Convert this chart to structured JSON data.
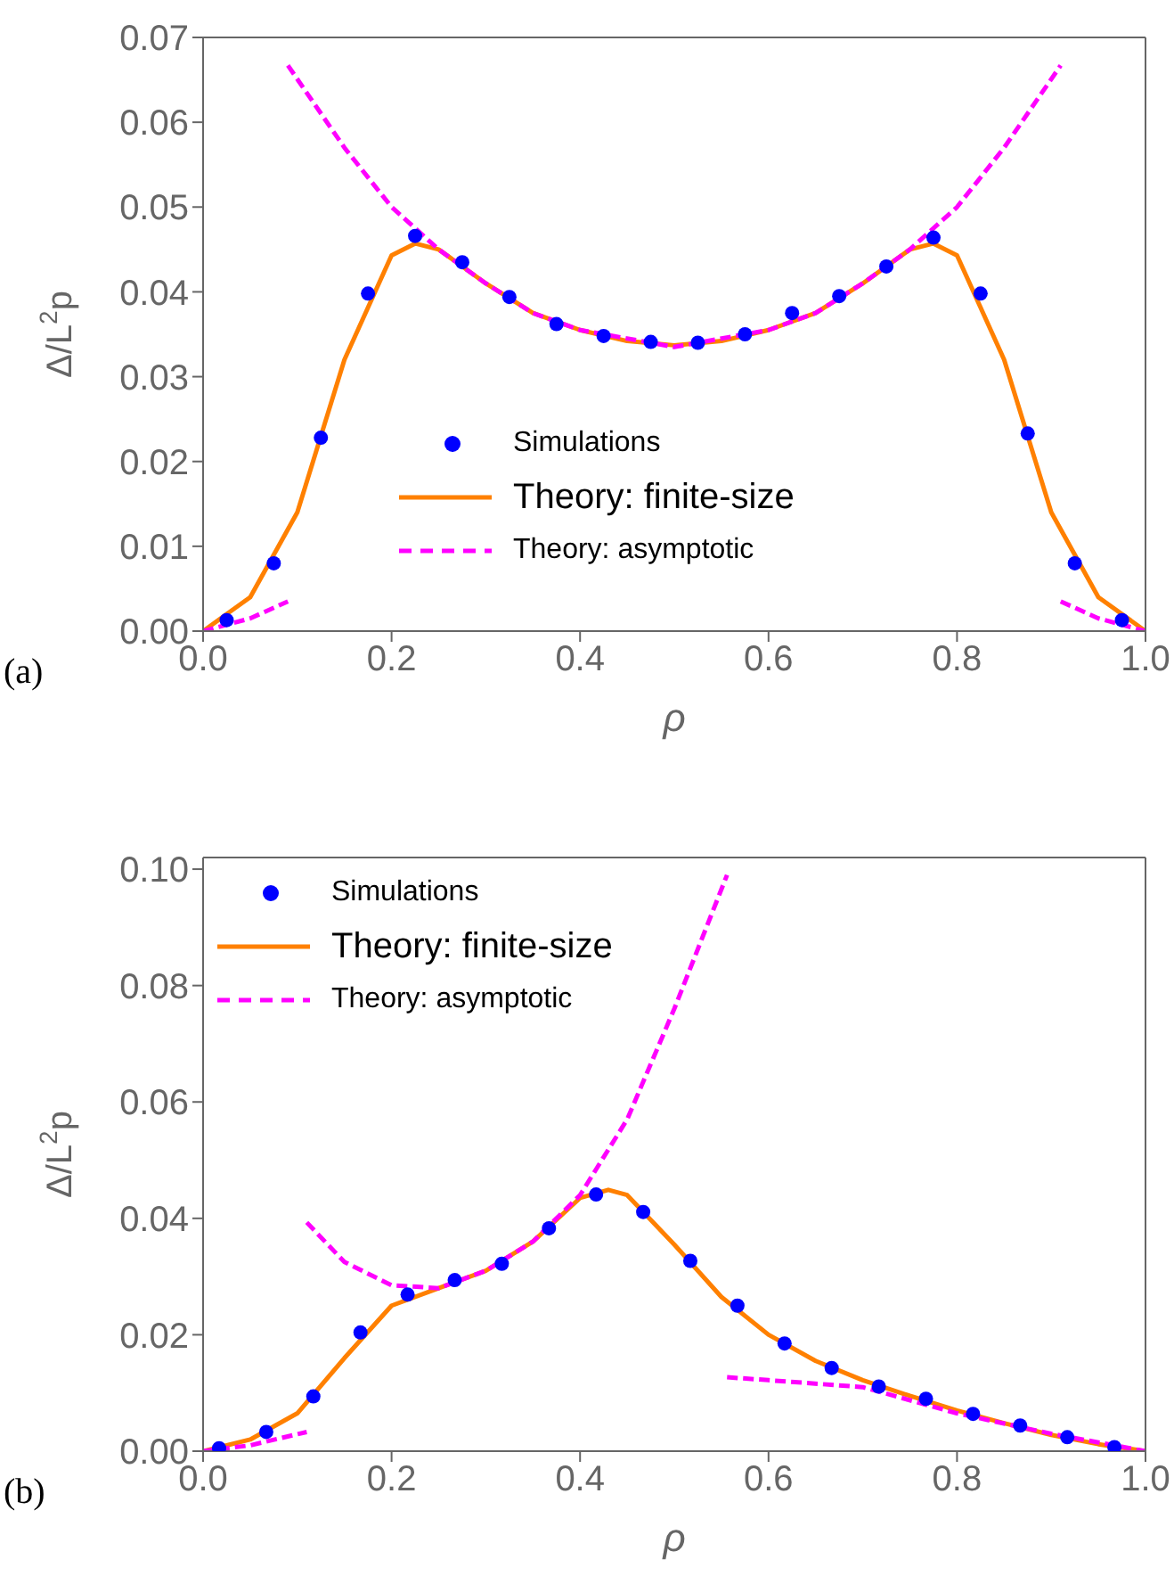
{
  "chart_data": [
    {
      "type": "line",
      "xlabel": "ρ",
      "ylabel": "Δ/L$^{2}$p",
      "annotations": [
        "(a)"
      ],
      "legend": "bottom",
      "xlim": [
        0,
        1
      ],
      "xticks": [
        {
          "value": 0,
          "label": "0.0"
        },
        {
          "value": 0.2,
          "label": "0.2"
        },
        {
          "value": 0.4,
          "label": "0.4"
        },
        {
          "value": 0.6,
          "label": "0.6"
        },
        {
          "value": 0.8,
          "label": "0.8"
        },
        {
          "value": 1,
          "label": "1.0"
        }
      ],
      "ylim": [
        0,
        0.07
      ],
      "yticks": [
        {
          "value": 0,
          "label": "0.00"
        },
        {
          "value": 0.01,
          "label": "0.01"
        },
        {
          "value": 0.02,
          "label": "0.02"
        },
        {
          "value": 0.03,
          "label": "0.03"
        },
        {
          "value": 0.04,
          "label": "0.04"
        },
        {
          "value": 0.05,
          "label": "0.05"
        },
        {
          "value": 0.06,
          "label": "0.06"
        },
        {
          "value": 0.07,
          "label": "0.07"
        }
      ],
      "series": [
        {
          "name": "Simulations",
          "type": "scatter",
          "marker": "circle",
          "color": "#0000ff",
          "x": [
            0.025,
            0.075,
            0.125,
            0.175,
            0.225,
            0.275,
            0.325,
            0.375,
            0.425,
            0.475,
            0.525,
            0.575,
            0.625,
            0.675,
            0.725,
            0.775,
            0.825,
            0.875,
            0.925,
            0.975
          ],
          "values": [
            0.0013,
            0.008,
            0.0228,
            0.0398,
            0.0466,
            0.0435,
            0.0394,
            0.0362,
            0.0348,
            0.0341,
            0.034,
            0.035,
            0.0375,
            0.0395,
            0.043,
            0.0464,
            0.0398,
            0.0233,
            0.008,
            0.0013
          ]
        },
        {
          "name": "Theory: finite-size",
          "type": "line",
          "line_style": "solid",
          "color": "#ff8000",
          "x": [
            0,
            0.05,
            0.1,
            0.15,
            0.2,
            0.225,
            0.25,
            0.3,
            0.35,
            0.4,
            0.45,
            0.5,
            0.55,
            0.6,
            0.65,
            0.7,
            0.75,
            0.775,
            0.8,
            0.85,
            0.9,
            0.95,
            1
          ],
          "values": [
            0,
            0.004,
            0.014,
            0.032,
            0.0443,
            0.0457,
            0.045,
            0.041,
            0.0375,
            0.0355,
            0.0342,
            0.0337,
            0.0342,
            0.0355,
            0.0375,
            0.041,
            0.045,
            0.0457,
            0.0443,
            0.032,
            0.014,
            0.004,
            0
          ]
        },
        {
          "name": "Theory: asymptotic",
          "type": "line",
          "line_style": "dashed",
          "color": "#ff00ff",
          "x": [
            0.09,
            0.15,
            0.2,
            0.25,
            0.3,
            0.35,
            0.4,
            0.5,
            0.6,
            0.65,
            0.7,
            0.75,
            0.8,
            0.85,
            0.91
          ],
          "values": [
            0.0667,
            0.057,
            0.05,
            0.045,
            0.041,
            0.0375,
            0.0355,
            0.0335,
            0.0355,
            0.0375,
            0.041,
            0.045,
            0.05,
            0.057,
            0.0667
          ]
        },
        {
          "type": "line",
          "line_style": "dashed",
          "color": "#ff00ff",
          "x": [
            0,
            0.05,
            0.09
          ],
          "values": [
            0,
            0.0015,
            0.0035
          ]
        },
        {
          "type": "line",
          "line_style": "dashed",
          "color": "#ff00ff",
          "x": [
            0.91,
            0.95,
            1
          ],
          "values": [
            0.0035,
            0.0015,
            0
          ]
        }
      ]
    },
    {
      "type": "line",
      "xlabel": "ρ",
      "ylabel": "Δ/L$^{2}$p",
      "annotations": [
        "(b)"
      ],
      "legend": "top left",
      "xlim": [
        0,
        1
      ],
      "xticks": [
        {
          "value": 0,
          "label": "0.0"
        },
        {
          "value": 0.2,
          "label": "0.2"
        },
        {
          "value": 0.4,
          "label": "0.4"
        },
        {
          "value": 0.6,
          "label": "0.6"
        },
        {
          "value": 0.8,
          "label": "0.8"
        },
        {
          "value": 1,
          "label": "1.0"
        }
      ],
      "ylim": [
        0,
        0.102
      ],
      "yticks": [
        {
          "value": 0,
          "label": "0.00"
        },
        {
          "value": 0.02,
          "label": "0.02"
        },
        {
          "value": 0.04,
          "label": "0.04"
        },
        {
          "value": 0.06,
          "label": "0.06"
        },
        {
          "value": 0.08,
          "label": "0.08"
        },
        {
          "value": 0.1,
          "label": "0.10"
        }
      ],
      "series": [
        {
          "name": "Simulations",
          "type": "scatter",
          "marker": "circle",
          "color": "#0000ff",
          "x": [
            0.017,
            0.067,
            0.117,
            0.167,
            0.217,
            0.267,
            0.317,
            0.367,
            0.417,
            0.467,
            0.517,
            0.567,
            0.617,
            0.667,
            0.717,
            0.767,
            0.817,
            0.867,
            0.917,
            0.967
          ],
          "values": [
            0.0005,
            0.0033,
            0.0094,
            0.0204,
            0.0269,
            0.0294,
            0.0322,
            0.0383,
            0.0441,
            0.0411,
            0.0327,
            0.025,
            0.0185,
            0.0143,
            0.0111,
            0.009,
            0.0064,
            0.0044,
            0.0024,
            0.0007
          ]
        },
        {
          "name": "Theory: finite-size",
          "type": "line",
          "line_style": "solid",
          "color": "#ff8000",
          "x": [
            0,
            0.05,
            0.1,
            0.15,
            0.2,
            0.25,
            0.3,
            0.35,
            0.4,
            0.43,
            0.45,
            0.5,
            0.55,
            0.6,
            0.65,
            0.7,
            0.75,
            0.8,
            0.85,
            0.9,
            0.95,
            1
          ],
          "values": [
            0,
            0.002,
            0.0065,
            0.016,
            0.025,
            0.028,
            0.031,
            0.036,
            0.0435,
            0.0449,
            0.044,
            0.0355,
            0.0265,
            0.02,
            0.0155,
            0.0122,
            0.0095,
            0.007,
            0.0048,
            0.0028,
            0.0012,
            0
          ]
        },
        {
          "name": "Theory: asymptotic",
          "type": "line",
          "line_style": "dashed",
          "color": "#ff00ff",
          "x": [
            0.11,
            0.15,
            0.2,
            0.25,
            0.3,
            0.35,
            0.4,
            0.45,
            0.5,
            0.556
          ],
          "values": [
            0.0393,
            0.0325,
            0.0285,
            0.028,
            0.031,
            0.036,
            0.044,
            0.057,
            0.076,
            0.099
          ]
        },
        {
          "type": "line",
          "line_style": "dashed",
          "color": "#ff00ff",
          "x": [
            0,
            0.05,
            0.11
          ],
          "values": [
            0,
            0.001,
            0.0033
          ]
        },
        {
          "type": "line",
          "line_style": "dashed",
          "color": "#ff00ff",
          "x": [
            0.556,
            0.6,
            0.7,
            0.8,
            0.9,
            1
          ],
          "values": [
            0.0127,
            0.0122,
            0.011,
            0.0065,
            0.003,
            0
          ]
        }
      ]
    }
  ]
}
